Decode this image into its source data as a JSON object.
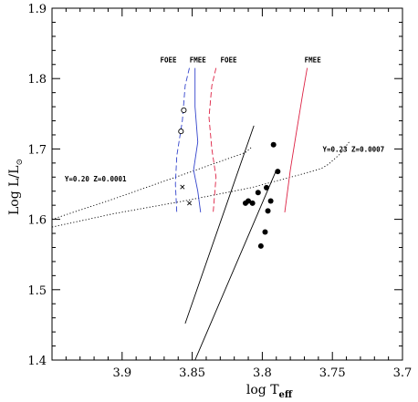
{
  "chart_data": {
    "type": "scatter",
    "title": "",
    "xlabel_main": "log T",
    "xlabel_sub": "eff",
    "ylabel_main": "Log L",
    "ylabel_slash": "/L",
    "ylabel_sub_symbol": "⊙",
    "xlim": [
      3.95,
      3.7
    ],
    "ylim": [
      1.4,
      1.9
    ],
    "x_reversed": true,
    "grid": false,
    "x_ticks": [
      3.9,
      3.85,
      3.8,
      3.75,
      3.7
    ],
    "x_tick_labels": [
      "3.9",
      "3.85",
      "3.8",
      "3.75",
      "3.7"
    ],
    "y_ticks": [
      1.4,
      1.5,
      1.6,
      1.7,
      1.8,
      1.9
    ],
    "y_tick_labels": [
      "1.4",
      "1.5",
      "1.6",
      "1.7",
      "1.8",
      "1.9"
    ],
    "series": [
      {
        "marker": "filled-circle",
        "points": [
          [
            3.792,
            1.706
          ],
          [
            3.789,
            1.668
          ],
          [
            3.803,
            1.638
          ],
          [
            3.797,
            1.645
          ],
          [
            3.81,
            1.626
          ],
          [
            3.807,
            1.623
          ],
          [
            3.812,
            1.623
          ],
          [
            3.794,
            1.626
          ],
          [
            3.796,
            1.612
          ],
          [
            3.798,
            1.582
          ],
          [
            3.801,
            1.562
          ]
        ]
      },
      {
        "marker": "open-circle",
        "points": [
          [
            3.856,
            1.755
          ],
          [
            3.858,
            1.725
          ]
        ]
      },
      {
        "marker": "cross",
        "points": [
          [
            3.857,
            1.646
          ],
          [
            3.852,
            1.623
          ]
        ]
      }
    ],
    "lines": [
      {
        "style": "solid",
        "color": "#000000",
        "points": [
          [
            3.855,
            1.452
          ],
          [
            3.806,
            1.733
          ]
        ]
      },
      {
        "style": "solid",
        "color": "#000000",
        "points": [
          [
            3.848,
            1.4
          ],
          [
            3.79,
            1.67
          ]
        ]
      },
      {
        "style": "dotted",
        "color": "#000000",
        "points": [
          [
            3.95,
            1.6
          ],
          [
            3.906,
            1.629
          ],
          [
            3.856,
            1.664
          ],
          [
            3.812,
            1.695
          ],
          [
            3.808,
            1.702
          ]
        ]
      },
      {
        "style": "dotted",
        "color": "#000000",
        "points": [
          [
            3.95,
            1.589
          ],
          [
            3.906,
            1.608
          ],
          [
            3.856,
            1.626
          ],
          [
            3.808,
            1.645
          ],
          [
            3.774,
            1.663
          ],
          [
            3.758,
            1.672
          ],
          [
            3.753,
            1.678
          ],
          [
            3.745,
            1.692
          ],
          [
            3.738,
            1.71
          ]
        ]
      },
      {
        "style": "dashed",
        "color": "#3344cc",
        "points": [
          [
            3.852,
            1.815
          ],
          [
            3.855,
            1.79
          ],
          [
            3.857,
            1.74
          ],
          [
            3.861,
            1.69
          ],
          [
            3.862,
            1.65
          ],
          [
            3.861,
            1.61
          ]
        ]
      },
      {
        "style": "solid",
        "color": "#3344cc",
        "points": [
          [
            3.848,
            1.815
          ],
          [
            3.848,
            1.76
          ],
          [
            3.846,
            1.71
          ],
          [
            3.849,
            1.67
          ],
          [
            3.846,
            1.64
          ],
          [
            3.844,
            1.61
          ]
        ]
      },
      {
        "style": "dashed",
        "color": "#dd2244",
        "points": [
          [
            3.833,
            1.815
          ],
          [
            3.836,
            1.79
          ],
          [
            3.838,
            1.745
          ],
          [
            3.836,
            1.7
          ],
          [
            3.833,
            1.66
          ],
          [
            3.835,
            1.61
          ]
        ]
      },
      {
        "style": "solid",
        "color": "#dd2244",
        "points": [
          [
            3.768,
            1.815
          ],
          [
            3.771,
            1.78
          ],
          [
            3.776,
            1.72
          ],
          [
            3.78,
            1.67
          ],
          [
            3.784,
            1.61
          ]
        ]
      }
    ],
    "annotations": [
      {
        "text": "FOEE",
        "x": 3.867,
        "y": 1.823,
        "anchor": "middle"
      },
      {
        "text": "FMEE",
        "x": 3.846,
        "y": 1.823,
        "anchor": "middle"
      },
      {
        "text": "FOEE",
        "x": 3.824,
        "y": 1.823,
        "anchor": "middle"
      },
      {
        "text": "FMEE",
        "x": 3.764,
        "y": 1.823,
        "anchor": "middle"
      },
      {
        "text": "Y=0.20   Z=0.0001",
        "x": 3.941,
        "y": 1.654,
        "anchor": "start"
      },
      {
        "text": "Y=0.23   Z=0.0007",
        "x": 3.757,
        "y": 1.696,
        "anchor": "start"
      }
    ]
  }
}
